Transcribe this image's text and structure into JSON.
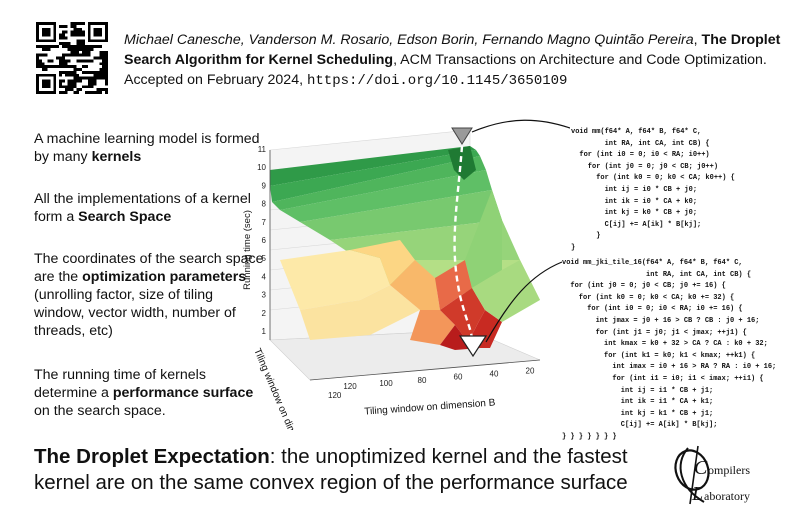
{
  "citation": {
    "authors": "Michael Canesche, Vanderson M. Rosario, Edson Borin, Fernando Magno Quintão Pereira",
    "title": "The Droplet Search Algorithm for Kernel Scheduling",
    "venue": ", ACM Transactions on Architecture and Code Optimization. Accepted on February 2024, ",
    "doi": "https://doi.org/10.1145/3650109"
  },
  "bullets": [
    {
      "pre": "A machine learning model is formed by many ",
      "bold": "kernels",
      "post": ""
    },
    {
      "pre": "All the implementations of a kernel form a ",
      "bold": "Search Space",
      "post": ""
    },
    {
      "pre": "The coordinates of the search space are the  ",
      "bold": "optimization parameters",
      "post": " (unrolling factor, size of tiling window, vector width, number of threads, etc)"
    },
    {
      "pre": "The running time of kernels determine a ",
      "bold": "performance surface",
      "post": " on the search space."
    }
  ],
  "figure": {
    "z_label": "Running time (sec)",
    "c_label": "Tiling window on dimension C",
    "b_label": "Tiling window on dimension B",
    "z_ticks": [
      "1",
      "2",
      "3",
      "4",
      "5",
      "6",
      "7",
      "8",
      "9",
      "10",
      "11"
    ],
    "b_ticks": [
      "120",
      "100",
      "80",
      "60",
      "40",
      "20"
    ],
    "c_ticks": [
      "120"
    ]
  },
  "code_naive": [
    "void mm(f64* A, f64* B, f64* C,",
    "        int RA, int CA, int CB) {",
    "  for (int i0 = 0; i0 < RA; i0++)",
    "    for (int j0 = 0; j0 < CB; j0++)",
    "      for (int k0 = 0; k0 < CA; k0++) {",
    "        int ij = i0 * CB + j0;",
    "        int ik = i0 * CA + k0;",
    "        int kj = k0 * CB + j0;",
    "        C[ij] += A[ik] * B[kj];",
    "      }",
    "}"
  ],
  "code_tiled": [
    "void mm_jki_tile_16(f64* A, f64* B, f64* C,",
    "                    int RA, int CA, int CB) {",
    "  for (int j0 = 0; j0 < CB; j0 += 16) {",
    "    for (int k0 = 0; k0 < CA; k0 += 32) {",
    "      for (int i0 = 0; i0 < RA; i0 += 16) {",
    "        int jmax = j0 + 16 > CB ? CB : j0 + 16;",
    "        for (int j1 = j0; j1 < jmax; ++j1) {",
    "          int kmax = k0 + 32 > CA ? CA : k0 + 32;",
    "          for (int k1 = k0; k1 < kmax; ++k1) {",
    "            int imax = i0 + 16 > RA ? RA : i0 + 16;",
    "            for (int i1 = i0; i1 < imax; ++i1) {",
    "              int ij = i1 * CB + j1;",
    "              int ik = i1 * CA + k1;",
    "              int kj = k1 * CB + j1;",
    "              C[ij] += A[ik] * B[kj];",
    "} } } } } } }"
  ],
  "expectation": {
    "bold": "The Droplet Expectation",
    "rest": ": the unoptimized kernel and the fastest kernel are on the same convex region of the performance surface"
  },
  "logo": {
    "c_letter": "C",
    "ompilers": "ompilers",
    "l_letter": "L",
    "aboratory": "aboratory"
  },
  "icons": {
    "qr": "qr-code-icon",
    "start_marker": "gray-down-triangle-icon",
    "end_marker": "white-down-triangle-icon"
  },
  "colors": {
    "green_dark": "#1f8a3c",
    "green_light": "#a8d878",
    "red_dark": "#b81414",
    "yellow": "#fde6a0"
  }
}
